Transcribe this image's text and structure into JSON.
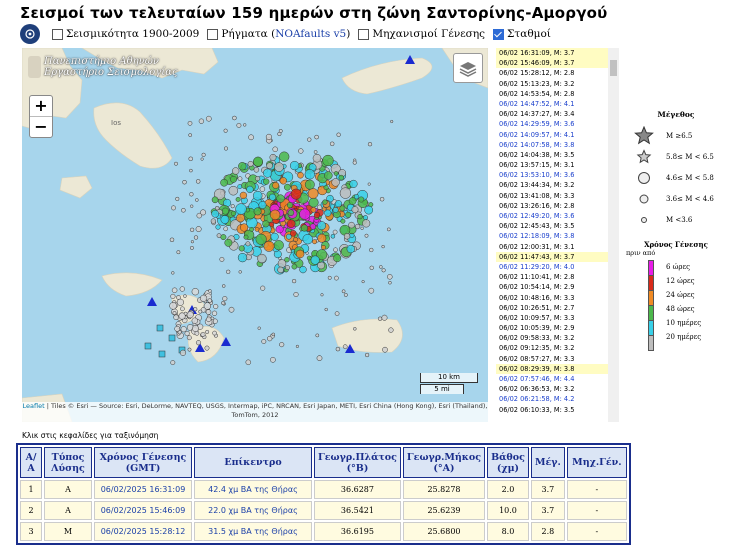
{
  "page": {
    "title": "Σεισμοί των τελευταίων 159 ημερών στη ζώνη Σαντορίνης-Αμοργού"
  },
  "controls": {
    "seismicity": {
      "label": "Σεισμικότητα 1900-2009",
      "checked": false
    },
    "faults": {
      "label_pre": "Ρήγματα (",
      "label_link": "NOAfaults v5",
      "label_post": ")",
      "checked": false
    },
    "mechanisms": {
      "label": "Μηχανισμοί Γένεσης",
      "checked": false
    },
    "stations": {
      "label": "Σταθμοί",
      "checked": true
    }
  },
  "map": {
    "logo_line1": "Πανεπιστήμιο Αθηνών",
    "logo_line2": "Εργαστήριο Σεισμολογίας",
    "zoom_in": "+",
    "zoom_out": "−",
    "island_label": "Ios",
    "scale_km": "10 km",
    "scale_mi": "5 mi",
    "attribution_link": "Leaflet",
    "attribution_text": " | Tiles © Esri — Source: Esri, DeLorme, NAVTEQ, USGS, Intermap, iPC, NRCAN, Esri Japan, METI, Esri China (Hong Kong), Esri (Thailand), TomTom, 2012",
    "colors": {
      "sea": "#a7d5ec",
      "land": "#ece8d5",
      "station": "#1a2bd0"
    }
  },
  "quake_list": [
    {
      "t": "06/02 16:31:09,",
      "m": "M: 3.7",
      "hl": true,
      "blue": false
    },
    {
      "t": "06/02 15:46:09,",
      "m": "M: 3.7",
      "hl": true,
      "blue": false
    },
    {
      "t": "06/02 15:28:12,",
      "m": "M: 2.8",
      "hl": false,
      "blue": false
    },
    {
      "t": "06/02 15:13:23,",
      "m": "M: 3.2",
      "hl": false,
      "blue": false
    },
    {
      "t": "06/02 14:53:54,",
      "m": "M: 2.8",
      "hl": false,
      "blue": false
    },
    {
      "t": "06/02 14:47:52,",
      "m": "M: 4.1",
      "hl": false,
      "blue": true
    },
    {
      "t": "06/02 14:37:27,",
      "m": "M: 3.4",
      "hl": false,
      "blue": false
    },
    {
      "t": "06/02 14:29:59,",
      "m": "M: 3.6",
      "hl": false,
      "blue": true
    },
    {
      "t": "06/02 14:09:57,",
      "m": "M: 4.1",
      "hl": false,
      "blue": true
    },
    {
      "t": "06/02 14:07:58,",
      "m": "M: 3.8",
      "hl": false,
      "blue": true
    },
    {
      "t": "06/02 14:04:38,",
      "m": "M: 3.5",
      "hl": false,
      "blue": false
    },
    {
      "t": "06/02 13:57:15,",
      "m": "M: 3.1",
      "hl": false,
      "blue": false
    },
    {
      "t": "06/02 13:53:10,",
      "m": "M: 3.6",
      "hl": false,
      "blue": true
    },
    {
      "t": "06/02 13:44:34,",
      "m": "M: 3.2",
      "hl": false,
      "blue": false
    },
    {
      "t": "06/02 13:41:08,",
      "m": "M: 3.3",
      "hl": false,
      "blue": false
    },
    {
      "t": "06/02 13:26:16,",
      "m": "M: 2.8",
      "hl": false,
      "blue": false
    },
    {
      "t": "06/02 12:49:20,",
      "m": "M: 3.6",
      "hl": false,
      "blue": true
    },
    {
      "t": "06/02 12:45:43,",
      "m": "M: 3.5",
      "hl": false,
      "blue": false
    },
    {
      "t": "06/02 12:18:09,",
      "m": "M: 3.8",
      "hl": false,
      "blue": true
    },
    {
      "t": "06/02 12:00:31,",
      "m": "M: 3.1",
      "hl": false,
      "blue": false
    },
    {
      "t": "06/02 11:47:43,",
      "m": "M: 3.7",
      "hl": true,
      "blue": false
    },
    {
      "t": "06/02 11:29:20,",
      "m": "M: 4.0",
      "hl": false,
      "blue": true
    },
    {
      "t": "06/02 11:10:41,",
      "m": "M: 2.8",
      "hl": false,
      "blue": false
    },
    {
      "t": "06/02 10:54:14,",
      "m": "M: 2.9",
      "hl": false,
      "blue": false
    },
    {
      "t": "06/02 10:48:16,",
      "m": "M: 3.3",
      "hl": false,
      "blue": false
    },
    {
      "t": "06/02 10:26:51,",
      "m": "M: 2.7",
      "hl": false,
      "blue": false
    },
    {
      "t": "06/02 10:09:57,",
      "m": "M: 3.3",
      "hl": false,
      "blue": false
    },
    {
      "t": "06/02 10:05:39,",
      "m": "M: 2.9",
      "hl": false,
      "blue": false
    },
    {
      "t": "06/02 09:58:33,",
      "m": "M: 3.2",
      "hl": false,
      "blue": false
    },
    {
      "t": "06/02 09:12:35,",
      "m": "M: 3.2",
      "hl": false,
      "blue": false
    },
    {
      "t": "06/02 08:57:27,",
      "m": "M: 3.3",
      "hl": false,
      "blue": false
    },
    {
      "t": "06/02 08:29:39,",
      "m": "M: 3.8",
      "hl": true,
      "blue": false
    },
    {
      "t": "06/02 07:57:46,",
      "m": "M: 4.4",
      "hl": false,
      "blue": true
    },
    {
      "t": "06/02 06:36:53,",
      "m": "M: 3.2",
      "hl": false,
      "blue": false
    },
    {
      "t": "06/02 06:21:58,",
      "m": "M: 4.2",
      "hl": false,
      "blue": true
    },
    {
      "t": "06/02 06:10:33,",
      "m": "M: 3.5",
      "hl": false,
      "blue": false
    }
  ],
  "legend": {
    "magnitude_title": "Μέγεθος",
    "mag_items": [
      {
        "label": "M ≥6.5",
        "shape": "star-large"
      },
      {
        "label": "5.8≤ M < 6.5",
        "shape": "star-small"
      },
      {
        "label": "4.6≤ M < 5.8",
        "shape": "circle-large"
      },
      {
        "label": "3.6≤ M < 4.6",
        "shape": "circle-medium"
      },
      {
        "label": "M <3.6",
        "shape": "circle-small"
      }
    ],
    "color_title": "Χρόνος Γένεσης",
    "color_sub": "πριν από",
    "color_items": [
      {
        "label": "6 ώρες",
        "color": "#e81ce8"
      },
      {
        "label": "12 ώρες",
        "color": "#d92a1a"
      },
      {
        "label": "24 ώρες",
        "color": "#f08a24"
      },
      {
        "label": "48 ώρες",
        "color": "#4cb84c"
      },
      {
        "label": "10 ημέρες",
        "color": "#38d0e8"
      },
      {
        "label": "20 ημέρες",
        "color": "#bdbdbd"
      }
    ]
  },
  "table": {
    "sort_note": "Κλικ στις κεφαλίδες για ταξινόμηση",
    "headers": [
      "Α/Α",
      "Τύπος Λύσης",
      "Χρόνος Γένεσης (GMT)",
      "Επίκεντρο",
      "Γεωγρ.Πλάτος (°Β)",
      "Γεωγρ.Μήκος (°Α)",
      "Βάθος (χμ)",
      "Μέγ.",
      "Μηχ.Γέν."
    ],
    "rows": [
      [
        "1",
        "Α",
        "06/02/2025 16:31:09",
        "42.4 χμ ΒΑ της Θήρας",
        "36.6287",
        "25.8278",
        "2.0",
        "3.7",
        "-"
      ],
      [
        "2",
        "Α",
        "06/02/2025 15:46:09",
        "22.0 χμ ΒΑ της Θήρας",
        "36.5421",
        "25.6239",
        "10.0",
        "3.7",
        "-"
      ],
      [
        "3",
        "Μ",
        "06/02/2025 15:28:12",
        "31.5 χμ ΒΑ της Θήρας",
        "36.6195",
        "25.6800",
        "8.0",
        "2.8",
        "-"
      ]
    ]
  }
}
